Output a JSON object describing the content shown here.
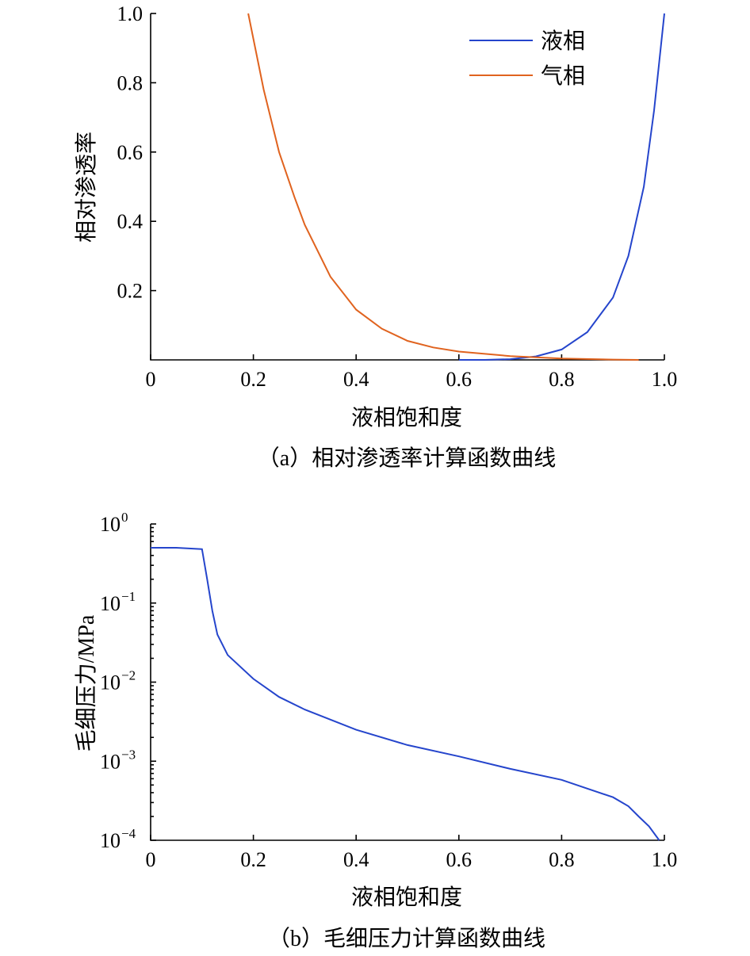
{
  "chart_data": [
    {
      "type": "line",
      "caption": "（a）相对渗透率计算函数曲线",
      "xlabel": "液相饱和度",
      "ylabel": "相对渗透率",
      "xlim": [
        0,
        1.0
      ],
      "ylim": [
        0,
        1.0
      ],
      "xticks": [
        "0",
        "0.2",
        "0.4",
        "0.6",
        "0.8",
        "1.0"
      ],
      "yticks": [
        "0.2",
        "0.4",
        "0.6",
        "0.8",
        "1.0"
      ],
      "legend": "top-right",
      "series": [
        {
          "name": "液相",
          "color": "#2545cc",
          "x": [
            0.6,
            0.65,
            0.7,
            0.75,
            0.8,
            0.85,
            0.9,
            0.93,
            0.96,
            0.98,
            1.0
          ],
          "y": [
            0.0,
            0.0,
            0.002,
            0.01,
            0.03,
            0.08,
            0.18,
            0.3,
            0.5,
            0.72,
            1.0
          ]
        },
        {
          "name": "气相",
          "color": "#e0631f",
          "x": [
            0.19,
            0.22,
            0.25,
            0.28,
            0.3,
            0.35,
            0.4,
            0.45,
            0.5,
            0.55,
            0.6,
            0.7,
            0.8,
            0.9,
            0.95
          ],
          "y": [
            1.0,
            0.78,
            0.6,
            0.47,
            0.39,
            0.24,
            0.145,
            0.09,
            0.055,
            0.036,
            0.024,
            0.011,
            0.004,
            0.001,
            0.0
          ]
        }
      ]
    },
    {
      "type": "line",
      "caption": "（b）毛细压力计算函数曲线",
      "xlabel": "液相饱和度",
      "ylabel": "毛细压力/MPa",
      "xlim": [
        0,
        1.0
      ],
      "ylim": [
        0.0001,
        1
      ],
      "yscale": "log",
      "xticks": [
        "0",
        "0.2",
        "0.4",
        "0.6",
        "0.8",
        "1.0"
      ],
      "yticks": [
        {
          "base": "10",
          "exp": "0"
        },
        {
          "base": "10",
          "exp": "−1"
        },
        {
          "base": "10",
          "exp": "−2"
        },
        {
          "base": "10",
          "exp": "−3"
        },
        {
          "base": "10",
          "exp": "−4"
        }
      ],
      "series": [
        {
          "color": "#2545cc",
          "x": [
            0.0,
            0.05,
            0.1,
            0.11,
            0.12,
            0.13,
            0.15,
            0.2,
            0.25,
            0.3,
            0.4,
            0.5,
            0.6,
            0.7,
            0.8,
            0.85,
            0.9,
            0.93,
            0.95,
            0.97,
            0.99
          ],
          "y": [
            0.5,
            0.5,
            0.48,
            0.2,
            0.08,
            0.04,
            0.022,
            0.011,
            0.0065,
            0.0045,
            0.0025,
            0.0016,
            0.00115,
            0.0008,
            0.00058,
            0.00045,
            0.00035,
            0.00027,
            0.0002,
            0.00015,
            0.0001
          ]
        }
      ]
    }
  ]
}
